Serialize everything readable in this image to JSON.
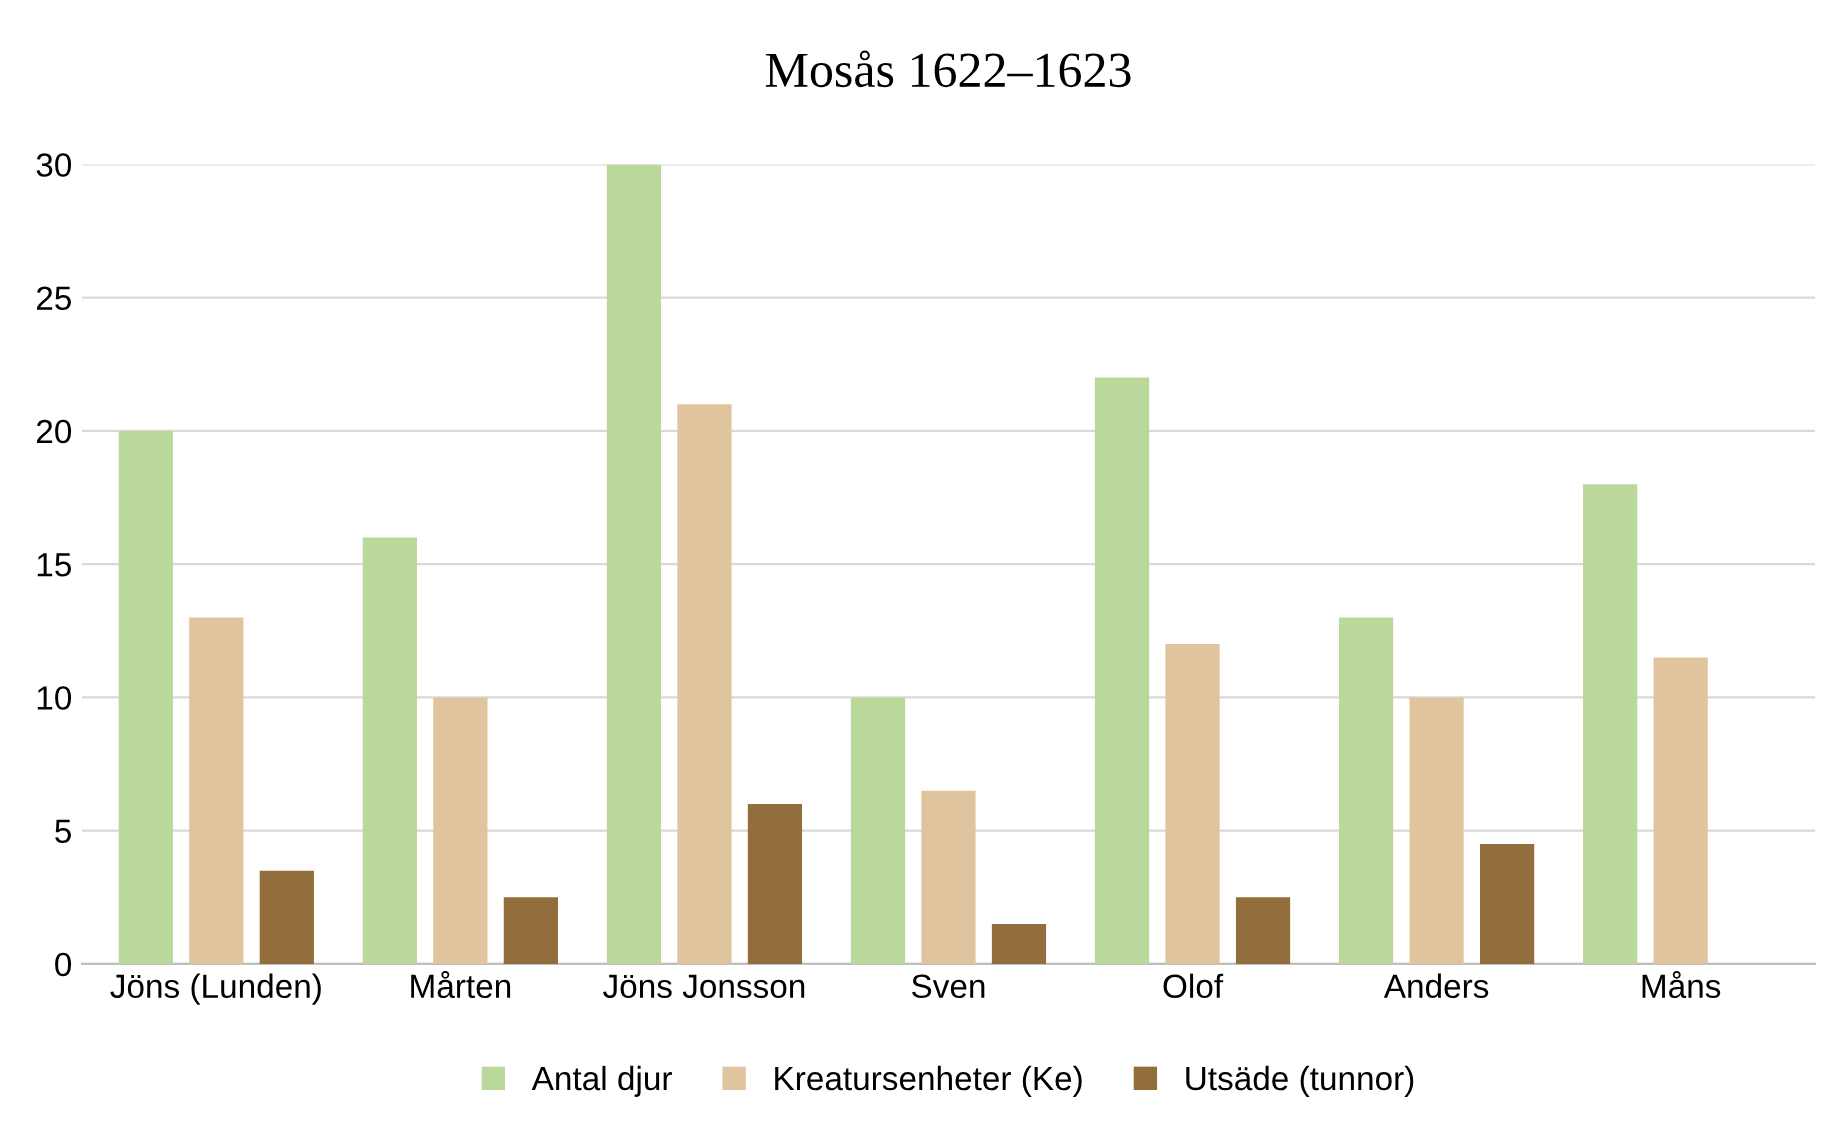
{
  "chart_data": {
    "type": "bar",
    "title": "Mosås 1622–1623",
    "categories": [
      "Jöns (Lunden)",
      "Mårten",
      "Jöns Jonsson",
      "Sven",
      "Olof",
      "Anders",
      "Måns"
    ],
    "series": [
      {
        "name": "Antal djur",
        "color": "#bad89b",
        "values": [
          20,
          16,
          30,
          10,
          22,
          13,
          18
        ]
      },
      {
        "name": "Kreatursenheter (Ke)",
        "color": "#e0c49d",
        "values": [
          13,
          10,
          21,
          6.5,
          12,
          10,
          11.5
        ]
      },
      {
        "name": "Utsäde (tunnor)",
        "color": "#936e3d",
        "values": [
          3.5,
          2.5,
          6,
          1.5,
          2.5,
          4.5,
          null
        ]
      }
    ],
    "ylim": [
      0,
      30
    ],
    "yticks": [
      0,
      5,
      10,
      15,
      20,
      25,
      30
    ],
    "grid": "y",
    "legend": "bottom"
  }
}
